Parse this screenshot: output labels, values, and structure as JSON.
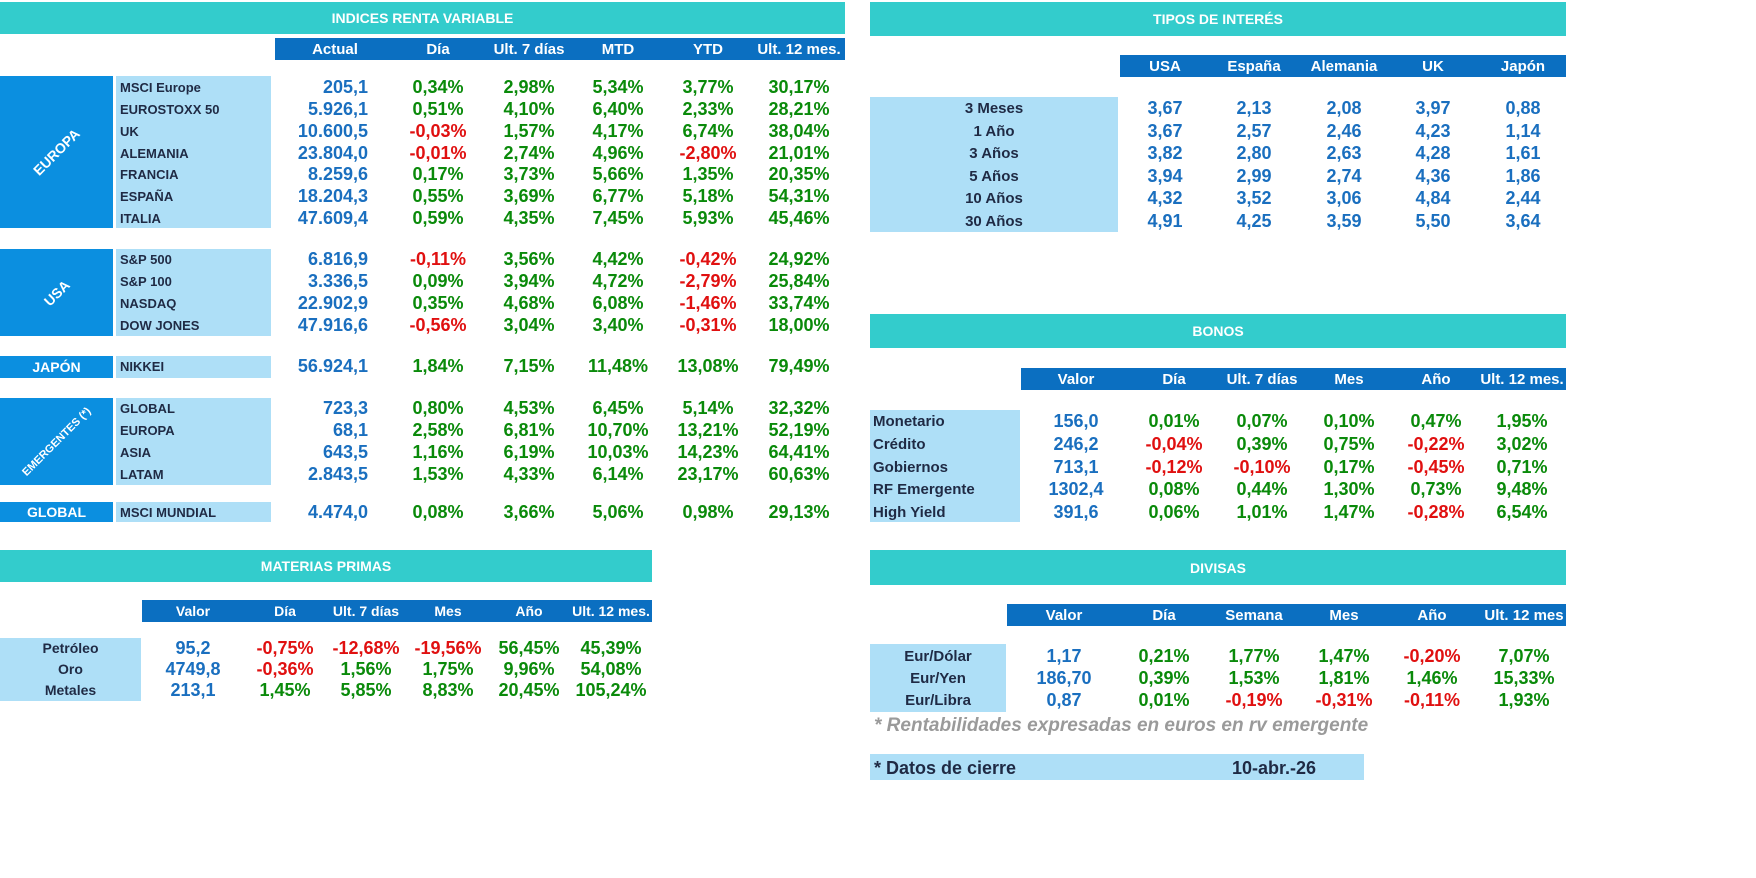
{
  "renta_variable": {
    "title": "INDICES RENTA VARIABLE",
    "headers": [
      "Actual",
      "Día",
      "Ult. 7 días",
      "MTD",
      "YTD",
      "Ult. 12 mes."
    ],
    "groups": [
      {
        "region": "EUROPA",
        "rows": [
          {
            "name": "MSCI Europe",
            "values": [
              "205,1",
              "0,34%",
              "2,98%",
              "5,34%",
              "3,77%",
              "30,17%"
            ]
          },
          {
            "name": "EUROSTOXX 50",
            "values": [
              "5.926,1",
              "0,51%",
              "4,10%",
              "6,40%",
              "2,33%",
              "28,21%"
            ]
          },
          {
            "name": "UK",
            "values": [
              "10.600,5",
              "-0,03%",
              "1,57%",
              "4,17%",
              "6,74%",
              "38,04%"
            ]
          },
          {
            "name": "ALEMANIA",
            "values": [
              "23.804,0",
              "-0,01%",
              "2,74%",
              "4,96%",
              "-2,80%",
              "21,01%"
            ]
          },
          {
            "name": "FRANCIA",
            "values": [
              "8.259,6",
              "0,17%",
              "3,73%",
              "5,66%",
              "1,35%",
              "20,35%"
            ]
          },
          {
            "name": "ESPAÑA",
            "values": [
              "18.204,3",
              "0,55%",
              "3,69%",
              "6,77%",
              "5,18%",
              "54,31%"
            ]
          },
          {
            "name": "ITALIA",
            "values": [
              "47.609,4",
              "0,59%",
              "4,35%",
              "7,45%",
              "5,93%",
              "45,46%"
            ]
          }
        ]
      },
      {
        "region": "USA",
        "rows": [
          {
            "name": "S&P 500",
            "values": [
              "6.816,9",
              "-0,11%",
              "3,56%",
              "4,42%",
              "-0,42%",
              "24,92%"
            ]
          },
          {
            "name": "S&P 100",
            "values": [
              "3.336,5",
              "0,09%",
              "3,94%",
              "4,72%",
              "-2,79%",
              "25,84%"
            ]
          },
          {
            "name": "NASDAQ",
            "values": [
              "22.902,9",
              "0,35%",
              "4,68%",
              "6,08%",
              "-1,46%",
              "33,74%"
            ]
          },
          {
            "name": "DOW JONES",
            "values": [
              "47.916,6",
              "-0,56%",
              "3,04%",
              "3,40%",
              "-0,31%",
              "18,00%"
            ]
          }
        ]
      },
      {
        "region": "JAPÓN",
        "rows": [
          {
            "name": "NIKKEI",
            "values": [
              "56.924,1",
              "1,84%",
              "7,15%",
              "11,48%",
              "13,08%",
              "79,49%"
            ]
          }
        ]
      },
      {
        "region": "EMERGENTES (*)",
        "rows": [
          {
            "name": "GLOBAL",
            "values": [
              "723,3",
              "0,80%",
              "4,53%",
              "6,45%",
              "5,14%",
              "32,32%"
            ]
          },
          {
            "name": "EUROPA",
            "values": [
              "68,1",
              "2,58%",
              "6,81%",
              "10,70%",
              "13,21%",
              "52,19%"
            ]
          },
          {
            "name": "ASIA",
            "values": [
              "643,5",
              "1,16%",
              "6,19%",
              "10,03%",
              "14,23%",
              "64,41%"
            ]
          },
          {
            "name": "LATAM",
            "values": [
              "2.843,5",
              "1,53%",
              "4,33%",
              "6,14%",
              "23,17%",
              "60,63%"
            ]
          }
        ]
      },
      {
        "region": "GLOBAL",
        "rows": [
          {
            "name": "MSCI MUNDIAL",
            "values": [
              "4.474,0",
              "0,08%",
              "3,66%",
              "5,06%",
              "0,98%",
              "29,13%"
            ]
          }
        ]
      }
    ]
  },
  "tipos_interes": {
    "title": "TIPOS DE INTERÉS",
    "headers": [
      "USA",
      "España",
      "Alemania",
      "UK",
      "Japón"
    ],
    "rows": [
      {
        "name": "3 Meses",
        "values": [
          "3,67",
          "2,13",
          "2,08",
          "3,97",
          "0,88"
        ]
      },
      {
        "name": "1 Año",
        "values": [
          "3,67",
          "2,57",
          "2,46",
          "4,23",
          "1,14"
        ]
      },
      {
        "name": "3 Años",
        "values": [
          "3,82",
          "2,80",
          "2,63",
          "4,28",
          "1,61"
        ]
      },
      {
        "name": "5 Años",
        "values": [
          "3,94",
          "2,99",
          "2,74",
          "4,36",
          "1,86"
        ]
      },
      {
        "name": "10 Años",
        "values": [
          "4,32",
          "3,52",
          "3,06",
          "4,84",
          "2,44"
        ]
      },
      {
        "name": "30 Años",
        "values": [
          "4,91",
          "4,25",
          "3,59",
          "5,50",
          "3,64"
        ]
      }
    ]
  },
  "bonos": {
    "title": "BONOS",
    "headers": [
      "Valor",
      "Día",
      "Ult. 7 días",
      "Mes",
      "Año",
      "Ult. 12 mes."
    ],
    "rows": [
      {
        "name": "Monetario",
        "values": [
          "156,0",
          "0,01%",
          "0,07%",
          "0,10%",
          "0,47%",
          "1,95%"
        ]
      },
      {
        "name": "Crédito",
        "values": [
          "246,2",
          "-0,04%",
          "0,39%",
          "0,75%",
          "-0,22%",
          "3,02%"
        ]
      },
      {
        "name": "Gobiernos",
        "values": [
          "713,1",
          "-0,12%",
          "-0,10%",
          "0,17%",
          "-0,45%",
          "0,71%"
        ]
      },
      {
        "name": "RF Emergente",
        "values": [
          "1302,4",
          "0,08%",
          "0,44%",
          "1,30%",
          "0,73%",
          "9,48%"
        ]
      },
      {
        "name": "High Yield",
        "values": [
          "391,6",
          "0,06%",
          "1,01%",
          "1,47%",
          "-0,28%",
          "6,54%"
        ]
      }
    ]
  },
  "materias_primas": {
    "title": "MATERIAS PRIMAS",
    "headers": [
      "Valor",
      "Día",
      "Ult. 7 días",
      "Mes",
      "Año",
      "Ult. 12 mes."
    ],
    "rows": [
      {
        "name": "Petróleo",
        "values": [
          "95,2",
          "-0,75%",
          "-12,68%",
          "-19,56%",
          "56,45%",
          "45,39%"
        ]
      },
      {
        "name": "Oro",
        "values": [
          "4749,8",
          "-0,36%",
          "1,56%",
          "1,75%",
          "9,96%",
          "54,08%"
        ]
      },
      {
        "name": "Metales",
        "values": [
          "213,1",
          "1,45%",
          "5,85%",
          "8,83%",
          "20,45%",
          "105,24%"
        ]
      }
    ]
  },
  "divisas": {
    "title": "DIVISAS",
    "headers": [
      "Valor",
      "Día",
      "Semana",
      "Mes",
      "Año",
      "Ult. 12 mes"
    ],
    "rows": [
      {
        "name": "Eur/Dólar",
        "values": [
          "1,17",
          "0,21%",
          "1,77%",
          "1,47%",
          "-0,20%",
          "7,07%"
        ]
      },
      {
        "name": "Eur/Yen",
        "values": [
          "186,70",
          "0,39%",
          "1,53%",
          "1,81%",
          "1,46%",
          "15,33%"
        ]
      },
      {
        "name": "Eur/Libra",
        "values": [
          "0,87",
          "0,01%",
          "-0,19%",
          "-0,31%",
          "-0,11%",
          "1,93%"
        ]
      }
    ]
  },
  "footnote": "* Rentabilidades expresadas en euros en rv emergente",
  "datos_cierre": {
    "label": "* Datos de cierre",
    "date": "10-abr.-26"
  },
  "colors": {
    "band": "#33CCCC",
    "header": "#0B6FC1",
    "label_bg": "#AEDFF7",
    "region_bg": "#0B8FE0",
    "value": "#1A6FBF",
    "positive": "#0A8A0A",
    "negative": "#E01010"
  }
}
